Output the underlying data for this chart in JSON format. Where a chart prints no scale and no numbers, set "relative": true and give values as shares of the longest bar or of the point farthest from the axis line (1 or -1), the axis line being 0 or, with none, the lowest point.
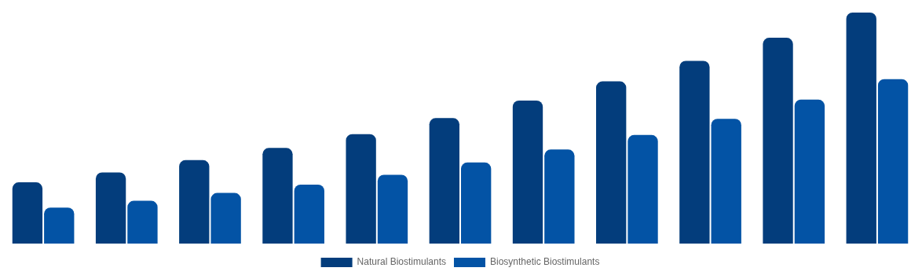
{
  "chart_data": {
    "type": "bar",
    "relative": true,
    "legend": "bottom",
    "categories": [
      null,
      null,
      null,
      null,
      null,
      null,
      null,
      null,
      null,
      null,
      null
    ],
    "series": [
      {
        "name": "Natural Biostimulants",
        "color": "#033d7c",
        "values": [
          0.265,
          0.308,
          0.361,
          0.414,
          0.474,
          0.543,
          0.619,
          0.702,
          0.791,
          0.891,
          1
        ]
      },
      {
        "name": "Biosynthetic Biostimulants",
        "color": "#0353a5",
        "values": [
          0.156,
          0.185,
          0.219,
          0.255,
          0.298,
          0.351,
          0.407,
          0.47,
          0.54,
          0.623,
          0.712
        ]
      }
    ]
  }
}
